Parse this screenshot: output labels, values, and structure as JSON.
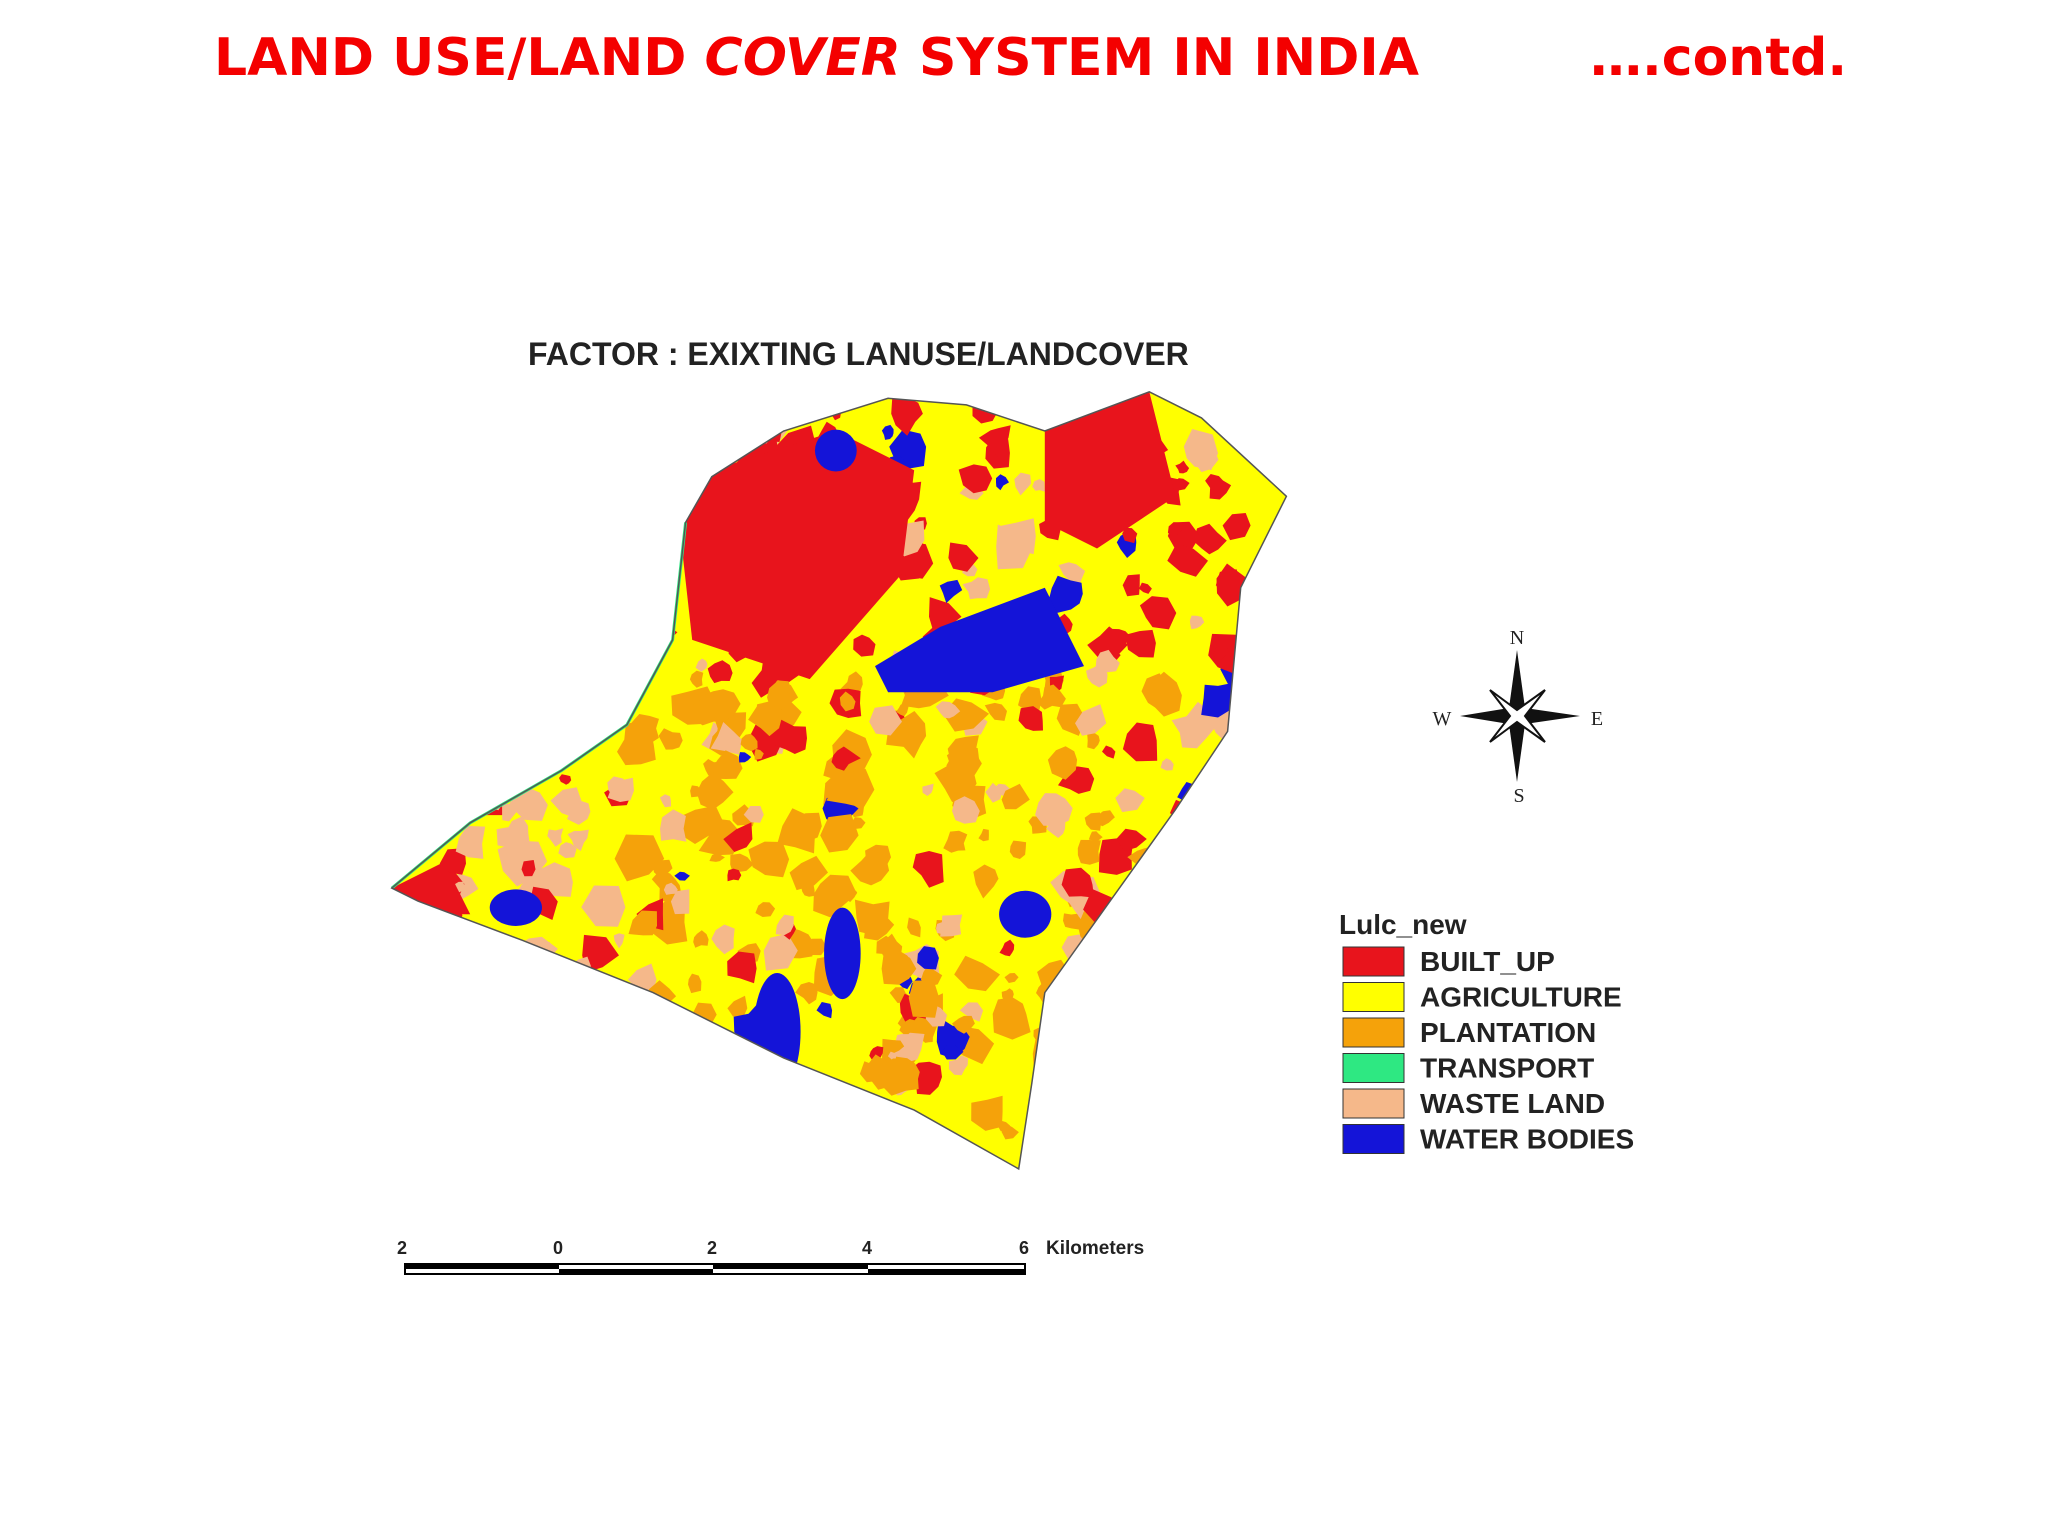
{
  "header": {
    "title": {
      "before": "LAND USE/LAND",
      "italic": "COVER",
      "after": "SYSTEM IN INDIA"
    },
    "contd": "….contd."
  },
  "map": {
    "title": "FACTOR : EXIXTING LANUSE/LANDCOVER"
  },
  "compass": {
    "north": "N",
    "east": "E",
    "south": "S",
    "west": "W"
  },
  "legend": {
    "title": "Lulc_new",
    "items": [
      {
        "label": "BUILT_UP",
        "color": "#e8141c"
      },
      {
        "label": "AGRICULTURE",
        "color": "#ffff00"
      },
      {
        "label": "PLANTATION",
        "color": "#f5a20a"
      },
      {
        "label": "TRANSPORT",
        "color": "#2ee882"
      },
      {
        "label": "WASTE LAND",
        "color": "#f5b88a"
      },
      {
        "label": "WATER BODIES",
        "color": "#1414d8"
      }
    ]
  },
  "scale_bar": {
    "labels": [
      "2",
      "0",
      "2",
      "4",
      "6"
    ],
    "unit": "Kilometers"
  }
}
